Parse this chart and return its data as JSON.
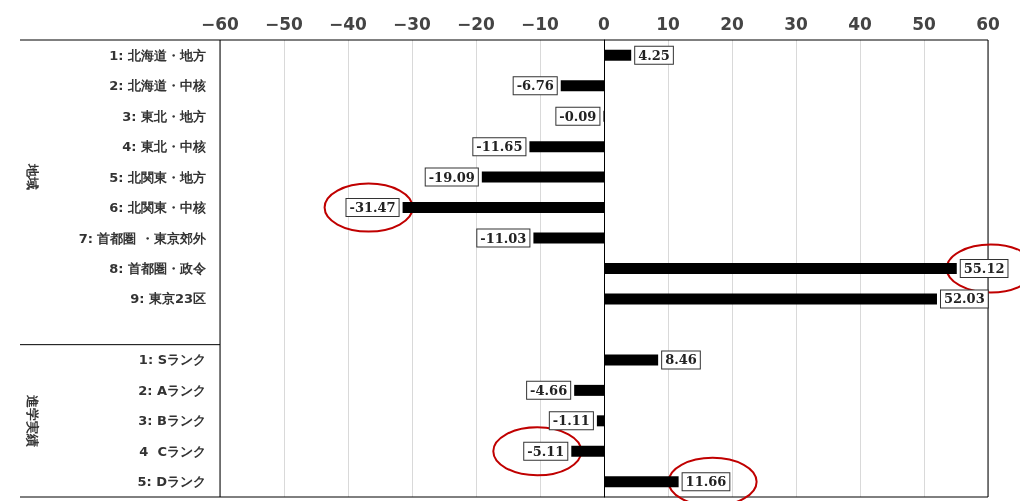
{
  "chart_data": {
    "type": "bar",
    "orientation": "horizontal",
    "categories": [
      "1: 北海道・地方",
      "2: 北海道・中核",
      "3: 東北・地方",
      "4: 東北・中核",
      "5: 北関東・地方",
      "6: 北関東・中核",
      "7: 首都圏 ・東京郊外",
      "8: 首都圏・政令",
      "9: 東京23区",
      null,
      "1: Sランク",
      "2: Aランク",
      "3: Bランク",
      "4  Cランク",
      "5: Dランク"
    ],
    "values": [
      4.25,
      -6.76,
      -0.09,
      -11.65,
      -19.09,
      -31.47,
      -11.03,
      55.12,
      52.03,
      null,
      8.46,
      -4.66,
      -1.11,
      -5.11,
      11.66
    ],
    "color": "#000000",
    "xlim": [
      -60,
      60
    ],
    "xticks": [
      {
        "value": -60,
        "label": "−60"
      },
      {
        "value": -50,
        "label": "−50"
      },
      {
        "value": -40,
        "label": "−40"
      },
      {
        "value": -30,
        "label": "−30"
      },
      {
        "value": -20,
        "label": "−20"
      },
      {
        "value": -10,
        "label": "−10"
      },
      0,
      10,
      20,
      30,
      40,
      50,
      60
    ],
    "data_labels": true,
    "grid": "x",
    "annotations": [
      "地域",
      "進学実績"
    ]
  }
}
